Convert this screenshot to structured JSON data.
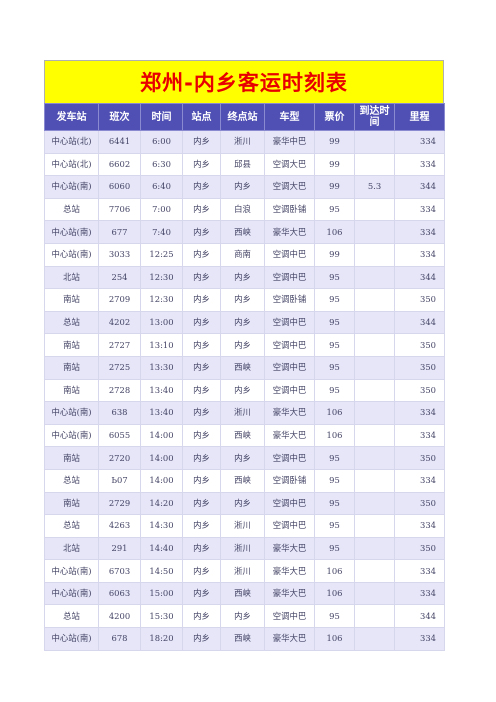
{
  "title": "郑州-内乡客运时刻表",
  "headers": [
    "发车站",
    "班次",
    "时间",
    "站点",
    "终点站",
    "车型",
    "票价",
    "到达时间",
    "里程"
  ],
  "rows": [
    [
      "中心站(北)",
      "6441",
      "6:00",
      "内乡",
      "淅川",
      "豪华中巴",
      "99",
      "",
      "334"
    ],
    [
      "中心站(北)",
      "6602",
      "6:30",
      "内乡",
      "邱县",
      "空调大巴",
      "99",
      "",
      "334"
    ],
    [
      "中心站(南)",
      "6060",
      "6:40",
      "内乡",
      "内乡",
      "空调大巴",
      "99",
      "5.3",
      "344"
    ],
    [
      "总站",
      "7706",
      "7:00",
      "内乡",
      "白浪",
      "空调卧铺",
      "95",
      "",
      "334"
    ],
    [
      "中心站(南)",
      "677",
      "7:40",
      "内乡",
      "西峡",
      "豪华大巴",
      "106",
      "",
      "334"
    ],
    [
      "中心站(南)",
      "3033",
      "12:25",
      "内乡",
      "商南",
      "空调中巴",
      "99",
      "",
      "334"
    ],
    [
      "北站",
      "254",
      "12:30",
      "内乡",
      "内乡",
      "空调中巴",
      "95",
      "",
      "344"
    ],
    [
      "南站",
      "2709",
      "12:30",
      "内乡",
      "内乡",
      "空调卧铺",
      "95",
      "",
      "350"
    ],
    [
      "总站",
      "4202",
      "13:00",
      "内乡",
      "内乡",
      "空调中巴",
      "95",
      "",
      "344"
    ],
    [
      "南站",
      "2727",
      "13:10",
      "内乡",
      "内乡",
      "空调中巴",
      "95",
      "",
      "350"
    ],
    [
      "南站",
      "2725",
      "13:30",
      "内乡",
      "西峡",
      "空调中巴",
      "95",
      "",
      "350"
    ],
    [
      "南站",
      "2728",
      "13:40",
      "内乡",
      "内乡",
      "空调中巴",
      "95",
      "",
      "350"
    ],
    [
      "中心站(南)",
      "638",
      "13:40",
      "内乡",
      "淅川",
      "豪华大巴",
      "106",
      "",
      "334"
    ],
    [
      "中心站(南)",
      "6055",
      "14:00",
      "内乡",
      "西峡",
      "豪华大巴",
      "106",
      "",
      "334"
    ],
    [
      "南站",
      "2720",
      "14:00",
      "内乡",
      "内乡",
      "空调中巴",
      "95",
      "",
      "350"
    ],
    [
      "总站",
      "Ь07",
      "14:00",
      "内乡",
      "西峡",
      "空调卧铺",
      "95",
      "",
      "334"
    ],
    [
      "南站",
      "2729",
      "14:20",
      "内乡",
      "内乡",
      "空调中巴",
      "95",
      "",
      "350"
    ],
    [
      "总站",
      "4263",
      "14:30",
      "内乡",
      "淅川",
      "空调中巴",
      "95",
      "",
      "334"
    ],
    [
      "北站",
      "291",
      "14:40",
      "内乡",
      "淅川",
      "豪华大巴",
      "95",
      "",
      "350"
    ],
    [
      "中心站(南)",
      "6703",
      "14:50",
      "内乡",
      "淅川",
      "豪华大巴",
      "106",
      "",
      "334"
    ],
    [
      "中心站(南)",
      "6063",
      "15:00",
      "内乡",
      "西峡",
      "豪华大巴",
      "106",
      "",
      "334"
    ],
    [
      "总站",
      "4200",
      "15:30",
      "内乡",
      "内乡",
      "空调中巴",
      "95",
      "",
      "344"
    ],
    [
      "中心站(南)",
      "678",
      "18:20",
      "内乡",
      "西峡",
      "豪华大巴",
      "106",
      "",
      "334"
    ]
  ],
  "colors": {
    "title_bg": "#ffff00",
    "title_text": "#e80000",
    "header_bg": "#4f4fb4",
    "row_alt": "#e6e6f8"
  }
}
